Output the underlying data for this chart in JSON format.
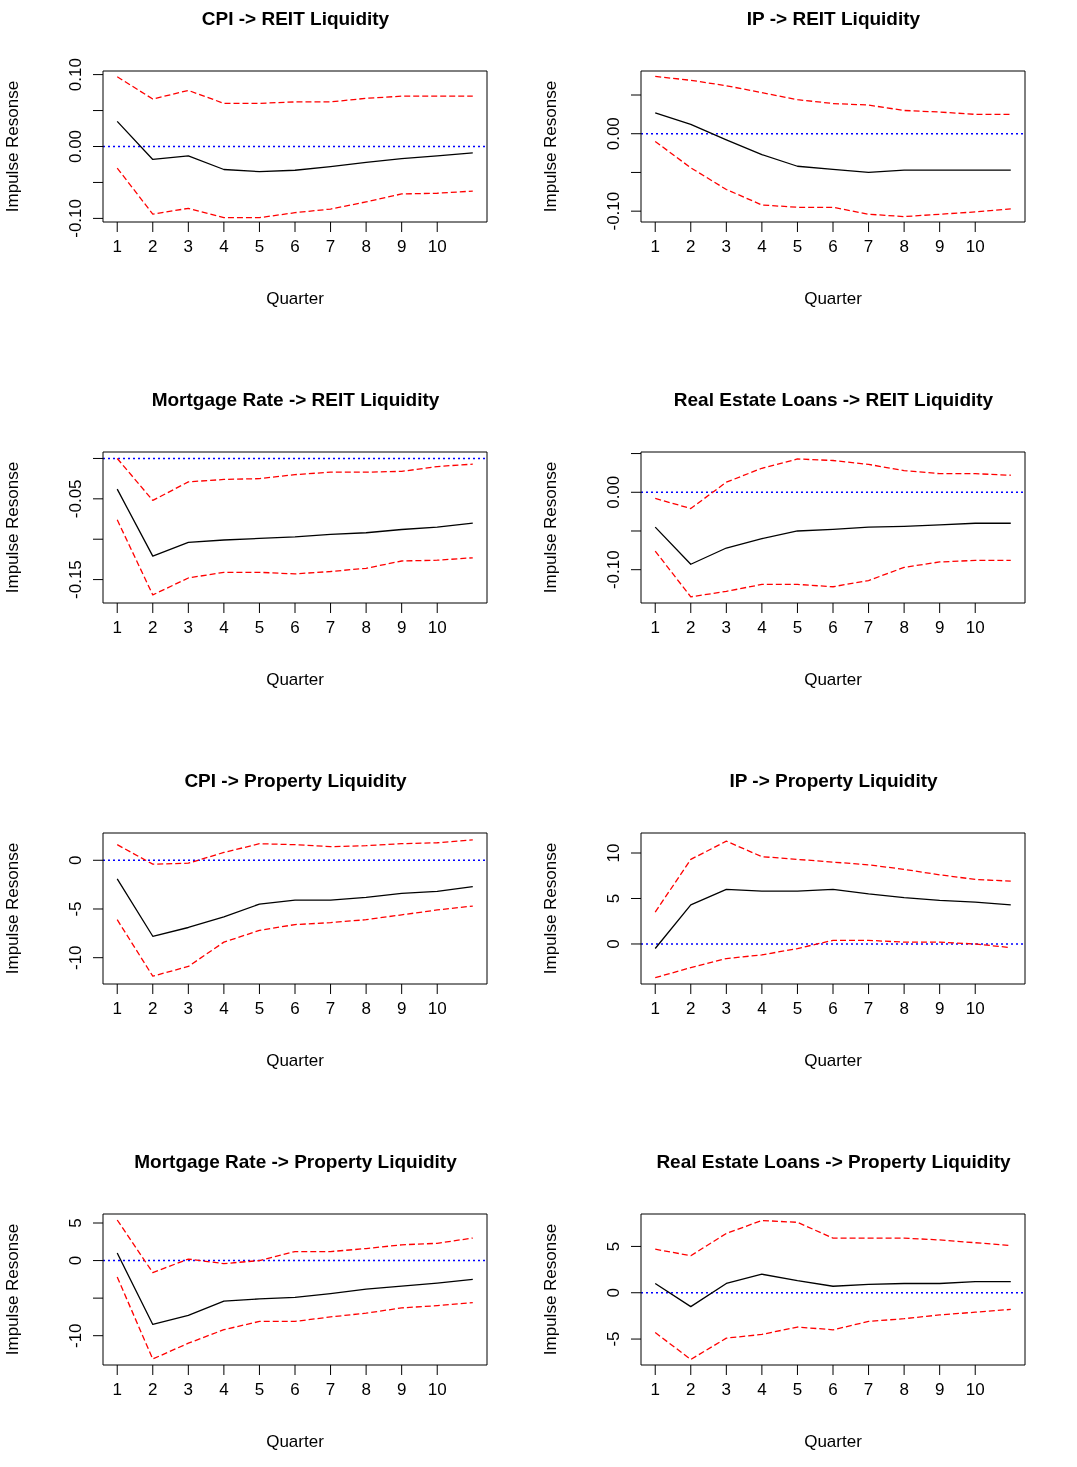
{
  "chart_data": [
    {
      "type": "line",
      "title": "CPI -> REIT Liquidity",
      "xlabel": "Quarter",
      "ylabel": "Impulse Resonse",
      "x": [
        1,
        2,
        3,
        4,
        5,
        6,
        7,
        8,
        9,
        10,
        11
      ],
      "xlim": [
        0.6,
        11.4
      ],
      "xticks": [
        1,
        2,
        3,
        4,
        5,
        6,
        7,
        8,
        9,
        10
      ],
      "ylim": [
        -0.105,
        0.105
      ],
      "yticks": [
        {
          "value": -0.1,
          "label": "-0.10"
        },
        {
          "value": -0.05,
          "label": null
        },
        {
          "value": 0,
          "label": "0.00"
        },
        {
          "value": 0.05,
          "label": null
        },
        {
          "value": 0.1,
          "label": "0.10"
        }
      ],
      "grid": false,
      "ref_lines": [
        {
          "axis": "y",
          "value": 0,
          "color": "#0000ff",
          "line_style": "dotted"
        }
      ],
      "series": [
        {
          "color": "#000000",
          "line_style": "solid",
          "values": [
            0.035,
            -0.018,
            -0.013,
            -0.032,
            -0.035,
            -0.033,
            -0.028,
            -0.022,
            -0.017,
            -0.013,
            -0.009
          ]
        },
        {
          "color": "#ff0000",
          "line_style": "dashed",
          "values": [
            0.097,
            0.066,
            0.078,
            0.06,
            0.06,
            0.062,
            0.062,
            0.067,
            0.07,
            0.07,
            0.07
          ]
        },
        {
          "color": "#ff0000",
          "line_style": "dashed",
          "values": [
            -0.03,
            -0.094,
            -0.086,
            -0.099,
            -0.099,
            -0.092,
            -0.087,
            -0.077,
            -0.066,
            -0.065,
            -0.062
          ]
        }
      ]
    },
    {
      "type": "line",
      "title": "IP -> REIT Liquidity",
      "xlabel": "Quarter",
      "ylabel": "Impulse Resonse",
      "x": [
        1,
        2,
        3,
        4,
        5,
        6,
        7,
        8,
        9,
        10,
        11
      ],
      "xlim": [
        0.6,
        11.4
      ],
      "xticks": [
        1,
        2,
        3,
        4,
        5,
        6,
        7,
        8,
        9,
        10
      ],
      "ylim": [
        -0.114,
        0.081
      ],
      "yticks": [
        {
          "value": -0.1,
          "label": "-0.10"
        },
        {
          "value": -0.05,
          "label": null
        },
        {
          "value": 0,
          "label": "0.00"
        },
        {
          "value": 0.05,
          "label": null
        }
      ],
      "grid": false,
      "ref_lines": [
        {
          "axis": "y",
          "value": 0,
          "color": "#0000ff",
          "line_style": "dotted"
        }
      ],
      "series": [
        {
          "color": "#000000",
          "line_style": "solid",
          "values": [
            0.027,
            0.012,
            -0.008,
            -0.027,
            -0.042,
            -0.046,
            -0.05,
            -0.047,
            -0.047,
            -0.047,
            -0.047
          ]
        },
        {
          "color": "#ff0000",
          "line_style": "dashed",
          "values": [
            0.074,
            0.069,
            0.062,
            0.053,
            0.044,
            0.039,
            0.037,
            0.03,
            0.028,
            0.025,
            0.025
          ]
        },
        {
          "color": "#ff0000",
          "line_style": "dashed",
          "values": [
            -0.01,
            -0.044,
            -0.072,
            -0.092,
            -0.095,
            -0.095,
            -0.104,
            -0.107,
            -0.104,
            -0.101,
            -0.097
          ]
        }
      ]
    },
    {
      "type": "line",
      "title": "Mortgage Rate -> REIT Liquidity",
      "xlabel": "Quarter",
      "ylabel": "Impulse Resonse",
      "x": [
        1,
        2,
        3,
        4,
        5,
        6,
        7,
        8,
        9,
        10,
        11
      ],
      "xlim": [
        0.6,
        11.4
      ],
      "xticks": [
        1,
        2,
        3,
        4,
        5,
        6,
        7,
        8,
        9,
        10
      ],
      "ylim": [
        -0.179,
        0.008
      ],
      "yticks": [
        {
          "value": -0.15,
          "label": "-0.15"
        },
        {
          "value": -0.1,
          "label": null
        },
        {
          "value": -0.05,
          "label": "-0.05"
        },
        {
          "value": 0,
          "label": null
        }
      ],
      "grid": false,
      "ref_lines": [
        {
          "axis": "y",
          "value": 0,
          "color": "#0000ff",
          "line_style": "dotted"
        }
      ],
      "series": [
        {
          "color": "#000000",
          "line_style": "solid",
          "values": [
            -0.038,
            -0.121,
            -0.104,
            -0.101,
            -0.099,
            -0.097,
            -0.094,
            -0.092,
            -0.088,
            -0.085,
            -0.08
          ]
        },
        {
          "color": "#ff0000",
          "line_style": "dashed",
          "values": [
            0.0,
            -0.052,
            -0.029,
            -0.026,
            -0.025,
            -0.02,
            -0.017,
            -0.017,
            -0.016,
            -0.01,
            -0.007
          ]
        },
        {
          "color": "#ff0000",
          "line_style": "dashed",
          "values": [
            -0.076,
            -0.169,
            -0.148,
            -0.141,
            -0.141,
            -0.143,
            -0.14,
            -0.136,
            -0.127,
            -0.126,
            -0.123
          ]
        }
      ]
    },
    {
      "type": "line",
      "title": "Real Estate Loans -> REIT Liquidity",
      "xlabel": "Quarter",
      "ylabel": "Impulse Resonse",
      "x": [
        1,
        2,
        3,
        4,
        5,
        6,
        7,
        8,
        9,
        10,
        11
      ],
      "xlim": [
        0.6,
        11.4
      ],
      "xticks": [
        1,
        2,
        3,
        4,
        5,
        6,
        7,
        8,
        9,
        10
      ],
      "ylim": [
        -0.143,
        0.052
      ],
      "yticks": [
        {
          "value": -0.1,
          "label": "-0.10"
        },
        {
          "value": -0.05,
          "label": null
        },
        {
          "value": 0,
          "label": "0.00"
        },
        {
          "value": 0.05,
          "label": null
        }
      ],
      "grid": false,
      "ref_lines": [
        {
          "axis": "y",
          "value": 0,
          "color": "#0000ff",
          "line_style": "dotted"
        }
      ],
      "series": [
        {
          "color": "#000000",
          "line_style": "solid",
          "values": [
            -0.045,
            -0.093,
            -0.072,
            -0.06,
            -0.05,
            -0.048,
            -0.045,
            -0.044,
            -0.042,
            -0.04,
            -0.04
          ]
        },
        {
          "color": "#ff0000",
          "line_style": "dashed",
          "values": [
            -0.008,
            -0.021,
            0.013,
            0.031,
            0.043,
            0.041,
            0.036,
            0.028,
            0.024,
            0.024,
            0.022
          ]
        },
        {
          "color": "#ff0000",
          "line_style": "dashed",
          "values": [
            -0.076,
            -0.135,
            -0.128,
            -0.119,
            -0.119,
            -0.122,
            -0.114,
            -0.097,
            -0.09,
            -0.088,
            -0.088
          ]
        }
      ]
    },
    {
      "type": "line",
      "title": "CPI -> Property Liquidity",
      "xlabel": "Quarter",
      "ylabel": "Impulse Resonse",
      "x": [
        1,
        2,
        3,
        4,
        5,
        6,
        7,
        8,
        9,
        10,
        11
      ],
      "xlim": [
        0.6,
        11.4
      ],
      "xticks": [
        1,
        2,
        3,
        4,
        5,
        6,
        7,
        8,
        9,
        10
      ],
      "ylim": [
        -12.7,
        2.8
      ],
      "yticks": [
        -10,
        -5,
        0
      ],
      "grid": false,
      "ref_lines": [
        {
          "axis": "y",
          "value": 0,
          "color": "#0000ff",
          "line_style": "dotted"
        }
      ],
      "series": [
        {
          "color": "#000000",
          "line_style": "solid",
          "values": [
            -1.9,
            -7.8,
            -6.9,
            -5.8,
            -4.5,
            -4.1,
            -4.1,
            -3.8,
            -3.4,
            -3.2,
            -2.7
          ]
        },
        {
          "color": "#ff0000",
          "line_style": "dashed",
          "values": [
            1.6,
            -0.4,
            -0.3,
            0.8,
            1.7,
            1.6,
            1.4,
            1.5,
            1.7,
            1.8,
            2.1
          ]
        },
        {
          "color": "#ff0000",
          "line_style": "dashed",
          "values": [
            -6.1,
            -11.9,
            -10.9,
            -8.4,
            -7.2,
            -6.6,
            -6.4,
            -6.1,
            -5.6,
            -5.1,
            -4.7
          ]
        }
      ]
    },
    {
      "type": "line",
      "title": "IP -> Property Liquidity",
      "xlabel": "Quarter",
      "ylabel": "Impulse Resonse",
      "x": [
        1,
        2,
        3,
        4,
        5,
        6,
        7,
        8,
        9,
        10,
        11
      ],
      "xlim": [
        0.6,
        11.4
      ],
      "xticks": [
        1,
        2,
        3,
        4,
        5,
        6,
        7,
        8,
        9,
        10
      ],
      "ylim": [
        -4.4,
        12.2
      ],
      "yticks": [
        0,
        5,
        10
      ],
      "grid": false,
      "ref_lines": [
        {
          "axis": "y",
          "value": 0,
          "color": "#0000ff",
          "line_style": "dotted"
        }
      ],
      "series": [
        {
          "color": "#000000",
          "line_style": "solid",
          "values": [
            -0.5,
            4.3,
            6.0,
            5.8,
            5.8,
            6.0,
            5.5,
            5.1,
            4.8,
            4.6,
            4.3
          ]
        },
        {
          "color": "#ff0000",
          "line_style": "dashed",
          "values": [
            3.5,
            9.3,
            11.3,
            9.6,
            9.3,
            9.0,
            8.7,
            8.2,
            7.6,
            7.1,
            6.9
          ]
        },
        {
          "color": "#ff0000",
          "line_style": "dashed",
          "values": [
            -3.7,
            -2.6,
            -1.6,
            -1.2,
            -0.5,
            0.4,
            0.4,
            0.2,
            0.2,
            0.0,
            -0.4
          ]
        }
      ]
    },
    {
      "type": "line",
      "title": "Mortgage Rate -> Property Liquidity",
      "xlabel": "Quarter",
      "ylabel": "Impulse Resonse",
      "x": [
        1,
        2,
        3,
        4,
        5,
        6,
        7,
        8,
        9,
        10,
        11
      ],
      "xlim": [
        0.6,
        11.4
      ],
      "xticks": [
        1,
        2,
        3,
        4,
        5,
        6,
        7,
        8,
        9,
        10
      ],
      "ylim": [
        -13.9,
        6.2
      ],
      "yticks": [
        -10,
        {
          "value": -5,
          "label": null
        },
        0,
        5
      ],
      "grid": false,
      "ref_lines": [
        {
          "axis": "y",
          "value": 0,
          "color": "#0000ff",
          "line_style": "dotted"
        }
      ],
      "series": [
        {
          "color": "#000000",
          "line_style": "solid",
          "values": [
            1.0,
            -8.5,
            -7.3,
            -5.4,
            -5.1,
            -4.9,
            -4.4,
            -3.8,
            -3.4,
            -3.0,
            -2.5
          ]
        },
        {
          "color": "#ff0000",
          "line_style": "dashed",
          "values": [
            5.4,
            -1.6,
            0.2,
            -0.4,
            0.0,
            1.2,
            1.2,
            1.6,
            2.1,
            2.3,
            3.0
          ]
        },
        {
          "color": "#ff0000",
          "line_style": "dashed",
          "values": [
            -2.2,
            -13.1,
            -11.0,
            -9.2,
            -8.1,
            -8.1,
            -7.5,
            -7.0,
            -6.3,
            -6.0,
            -5.6
          ]
        }
      ]
    },
    {
      "type": "line",
      "title": "Real Estate Loans -> Property Liquidity",
      "xlabel": "Quarter",
      "ylabel": "Impulse Resonse",
      "x": [
        1,
        2,
        3,
        4,
        5,
        6,
        7,
        8,
        9,
        10,
        11
      ],
      "xlim": [
        0.6,
        11.4
      ],
      "xticks": [
        1,
        2,
        3,
        4,
        5,
        6,
        7,
        8,
        9,
        10
      ],
      "ylim": [
        -7.8,
        8.5
      ],
      "yticks": [
        -5,
        0,
        5
      ],
      "grid": false,
      "ref_lines": [
        {
          "axis": "y",
          "value": 0,
          "color": "#0000ff",
          "line_style": "dotted"
        }
      ],
      "series": [
        {
          "color": "#000000",
          "line_style": "solid",
          "values": [
            1.0,
            -1.5,
            1.0,
            2.0,
            1.3,
            0.7,
            0.9,
            1.0,
            1.0,
            1.2,
            1.2
          ]
        },
        {
          "color": "#ff0000",
          "line_style": "dashed",
          "values": [
            4.7,
            4.0,
            6.4,
            7.8,
            7.6,
            5.9,
            5.9,
            5.9,
            5.7,
            5.4,
            5.1
          ]
        },
        {
          "color": "#ff0000",
          "line_style": "dashed",
          "values": [
            -4.3,
            -7.2,
            -4.9,
            -4.5,
            -3.7,
            -4.0,
            -3.1,
            -2.8,
            -2.4,
            -2.1,
            -1.8
          ]
        }
      ]
    }
  ]
}
